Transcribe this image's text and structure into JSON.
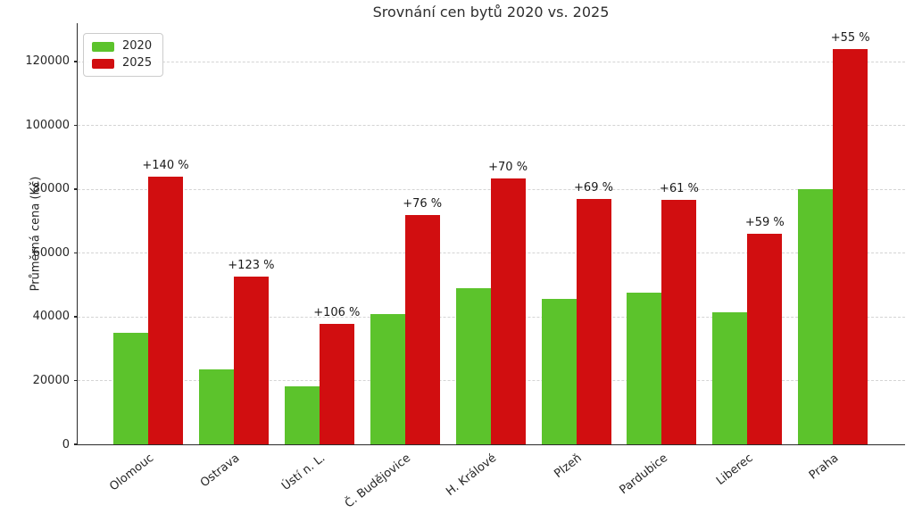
{
  "chart_data": {
    "type": "bar",
    "title": "Srovnání cen bytů 2020 vs. 2025",
    "xlabel": "",
    "ylabel": "Průměrná cena (Kč)",
    "categories": [
      "Olomouc",
      "Ostrava",
      "Ústí n. L.",
      "Č. Budějovice",
      "H. Králové",
      "Plzeň",
      "Pardubice",
      "Liberec",
      "Praha"
    ],
    "series": [
      {
        "name": "2020",
        "color": "#5cc32c",
        "values": [
          35000,
          23600,
          18300,
          40800,
          49000,
          45600,
          47600,
          41500,
          80000
        ]
      },
      {
        "name": "2025",
        "color": "#d10e10",
        "values": [
          84000,
          52600,
          37700,
          71800,
          83300,
          77000,
          76600,
          66000,
          124000
        ]
      }
    ],
    "annotations": [
      "+140 %",
      "+123 %",
      "+106 %",
      "+76 %",
      "+70 %",
      "+69 %",
      "+61 %",
      "+59 %",
      "+55 %"
    ],
    "ylim": [
      0,
      132000
    ],
    "yticks": [
      0,
      20000,
      40000,
      60000,
      80000,
      100000,
      120000
    ],
    "grid": "horizontal-dashed",
    "legend_position": "upper-left"
  },
  "colors": {
    "bar_2020": "#5cc32c",
    "bar_2025": "#d10e10",
    "grid": "#d4d4d4",
    "axis": "#2a2a2a",
    "text": "#262626",
    "legend_border": "#cccccc",
    "background": "#ffffff"
  }
}
